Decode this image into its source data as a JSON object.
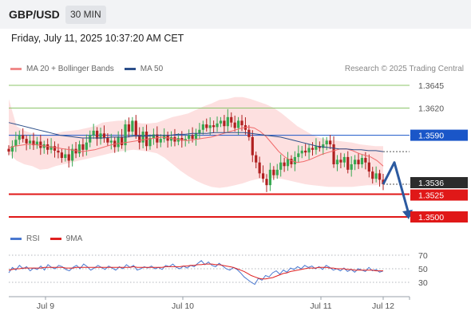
{
  "header": {
    "symbol": "GBP/USD",
    "timeframe": "30 MIN"
  },
  "datetime": "Friday, July 11, 2025 10:37:20 AM CET",
  "legend": {
    "items": [
      {
        "label": "MA 20 + Bollinger Bands",
        "color": "#f08a8a"
      },
      {
        "label": "MA 50",
        "color": "#2c4f8a"
      }
    ],
    "credit": "Research © 2025 Trading Central"
  },
  "rsi_legend": {
    "items": [
      {
        "label": "RSI",
        "color": "#4a78d0"
      },
      {
        "label": "9MA",
        "color": "#e02020"
      }
    ]
  },
  "chart_data": [
    {
      "type": "candlestick",
      "title": "",
      "x_ticks": [
        "Jul 9",
        "Jul 10",
        "Jul 11",
        "Jul 12"
      ],
      "price_levels": [
        {
          "label": "1.3645",
          "value": 1.3645,
          "kind": "resistance",
          "color": "#8cc46a"
        },
        {
          "label": "1.3620",
          "value": 1.362,
          "kind": "resistance",
          "color": "#8cc46a"
        },
        {
          "label": "1.3590",
          "value": 1.359,
          "kind": "pivot",
          "color": "#1a56c8"
        },
        {
          "label": "1.3536",
          "value": 1.3536,
          "kind": "last-price",
          "color": "#2b2b2b"
        },
        {
          "label": "1.3525",
          "value": 1.3525,
          "kind": "support",
          "color": "#e01818"
        },
        {
          "label": "1.3500",
          "value": 1.35,
          "kind": "support",
          "color": "#e01818"
        }
      ],
      "ylim": [
        1.3487,
        1.367
      ],
      "close_path": [
        1.3572,
        1.3578,
        1.3585,
        1.359,
        1.3586,
        1.3581,
        1.3584,
        1.3579,
        1.3583,
        1.3576,
        1.358,
        1.3574,
        1.3578,
        1.3573,
        1.3571,
        1.3565,
        1.3569,
        1.3562,
        1.3575,
        1.357,
        1.358,
        1.3574,
        1.3582,
        1.359,
        1.3595,
        1.3586,
        1.3592,
        1.3587,
        1.3582,
        1.3584,
        1.3577,
        1.3588,
        1.3579,
        1.3602,
        1.3594,
        1.3606,
        1.359,
        1.3582,
        1.3594,
        1.3578,
        1.3587,
        1.3591,
        1.3582,
        1.3586,
        1.359,
        1.3584,
        1.3588,
        1.3583,
        1.3587,
        1.3584,
        1.3586,
        1.359,
        1.3586,
        1.3592,
        1.3596,
        1.3602,
        1.3598,
        1.3601,
        1.3599,
        1.3603,
        1.3606,
        1.36,
        1.361,
        1.3604,
        1.3598,
        1.3606,
        1.3601,
        1.3596,
        1.3588,
        1.3568,
        1.356,
        1.3548,
        1.3542,
        1.3535,
        1.3552,
        1.3546,
        1.3552,
        1.356,
        1.3556,
        1.3564,
        1.3558,
        1.3566,
        1.357,
        1.3573,
        1.3571,
        1.3576,
        1.3574,
        1.3578,
        1.3576,
        1.358,
        1.3584,
        1.358,
        1.3558,
        1.3563,
        1.356,
        1.3566,
        1.3552,
        1.3558,
        1.3563,
        1.3558,
        1.3565,
        1.356,
        1.355,
        1.3542,
        1.3548,
        1.3541,
        1.3536
      ],
      "ma20_path": [
        1.3576,
        1.3578,
        1.3579,
        1.358,
        1.358,
        1.3579,
        1.3578,
        1.3577,
        1.3576,
        1.3575,
        1.3574,
        1.3573,
        1.3572,
        1.3573,
        1.3574,
        1.3576,
        1.3578,
        1.358,
        1.3581,
        1.3582,
        1.3583,
        1.3584,
        1.3585,
        1.3586,
        1.3587,
        1.3588,
        1.3587,
        1.3586,
        1.3585,
        1.3584,
        1.3585,
        1.3586,
        1.3587,
        1.3588,
        1.359,
        1.3592,
        1.3594,
        1.3596,
        1.3598,
        1.3599,
        1.3598,
        1.3594,
        1.3588,
        1.358,
        1.3572,
        1.3566,
        1.3562,
        1.356,
        1.3561,
        1.3563,
        1.3566,
        1.3569,
        1.3571,
        1.3573,
        1.3575,
        1.3575,
        1.3573,
        1.357,
        1.3568,
        1.3566,
        1.3562,
        1.3556
      ],
      "ma50_path": [
        1.3604,
        1.3602,
        1.36,
        1.3598,
        1.3596,
        1.3594,
        1.3592,
        1.359,
        1.3589,
        1.3588,
        1.3587,
        1.3587,
        1.3587,
        1.3587,
        1.3588,
        1.3588,
        1.3588,
        1.3589,
        1.3589,
        1.3589,
        1.359,
        1.359,
        1.359,
        1.3591,
        1.3591,
        1.3592,
        1.3592,
        1.3592,
        1.3593,
        1.3593,
        1.3593,
        1.3593,
        1.3593,
        1.3592,
        1.3591,
        1.359,
        1.3589,
        1.3588,
        1.3586,
        1.3584,
        1.3582,
        1.358,
        1.3578,
        1.3577,
        1.3576,
        1.3575,
        1.3575,
        1.3574,
        1.3574,
        1.3573,
        1.3573,
        1.3572
      ],
      "bollinger_upper": [
        1.363,
        1.36,
        1.3595,
        1.3592,
        1.359,
        1.359,
        1.3592,
        1.3594,
        1.3595,
        1.3596,
        1.3598,
        1.36,
        1.3604,
        1.3605,
        1.3606,
        1.3606,
        1.3605,
        1.3603,
        1.3603,
        1.3604,
        1.3607,
        1.361,
        1.3612,
        1.3614,
        1.3618,
        1.3622,
        1.3625,
        1.3629,
        1.363,
        1.3632,
        1.3632,
        1.363,
        1.3627,
        1.3624,
        1.362,
        1.3614,
        1.3607,
        1.36,
        1.3595,
        1.359,
        1.3587,
        1.3585,
        1.3584,
        1.3583,
        1.3582,
        1.358,
        1.3579,
        1.3578,
        1.3578
      ],
      "bollinger_lower": [
        1.357,
        1.3562,
        1.3558,
        1.3556,
        1.3552,
        1.3553,
        1.3556,
        1.3558,
        1.356,
        1.3562,
        1.3564,
        1.3566,
        1.3568,
        1.357,
        1.3572,
        1.3573,
        1.3574,
        1.3573,
        1.3572,
        1.357,
        1.3565,
        1.3558,
        1.3551,
        1.3545,
        1.354,
        1.3536,
        1.3533,
        1.3532,
        1.3533,
        1.3535,
        1.3537,
        1.354,
        1.3542,
        1.3543,
        1.3543,
        1.3542,
        1.354,
        1.3538,
        1.3536,
        1.3535,
        1.3534,
        1.3533,
        1.3533,
        1.3533,
        1.3533,
        1.3534,
        1.3535,
        1.3535,
        1.3536
      ],
      "forecast_path": [
        1.3536,
        1.356,
        1.35
      ],
      "forecast_color": "#2c5aa0",
      "colors": {
        "up": "#37a851",
        "down": "#b02020",
        "ma20": "#f06a6a",
        "band": "#fcd6d6",
        "ma50": "#2c4f8a"
      }
    },
    {
      "type": "line",
      "title": "",
      "levels": [
        70,
        50,
        30
      ],
      "ylim": [
        20,
        80
      ],
      "series": [
        {
          "name": "RSI",
          "color": "#4a78d0",
          "values": [
            44,
            52,
            48,
            55,
            50,
            53,
            47,
            51,
            49,
            54,
            48,
            56,
            52,
            50,
            55,
            53,
            49,
            47,
            52,
            55,
            50,
            57,
            53,
            48,
            51,
            55,
            52,
            49,
            54,
            51,
            48,
            53,
            50,
            56,
            52,
            55,
            48,
            50,
            53,
            51,
            54,
            50,
            52,
            49,
            55,
            53,
            57,
            52,
            50,
            54,
            51,
            55,
            53,
            58,
            62,
            56,
            60,
            55,
            53,
            58,
            54,
            50,
            48,
            52,
            49,
            44,
            38,
            34,
            30,
            27,
            36,
            33,
            40,
            38,
            44,
            47,
            42,
            48,
            45,
            51,
            49,
            53,
            50,
            55,
            52,
            54,
            50,
            53,
            49,
            55,
            52,
            48,
            50,
            47,
            51,
            46,
            49,
            45,
            50,
            48,
            46,
            52,
            47,
            49,
            45,
            47
          ]
        },
        {
          "name": "9MA",
          "color": "#e02020",
          "values": [
            48,
            49,
            50,
            50,
            51,
            51,
            51,
            51,
            51,
            51,
            52,
            52,
            52,
            52,
            52,
            52,
            51,
            51,
            51,
            52,
            52,
            52,
            52,
            52,
            52,
            52,
            52,
            52,
            52,
            52,
            52,
            52,
            52,
            52,
            52,
            53,
            52,
            52,
            52,
            52,
            52,
            52,
            52,
            52,
            53,
            53,
            53,
            53,
            53,
            54,
            54,
            55,
            55,
            56,
            56,
            57,
            57,
            57,
            56,
            56,
            55,
            54,
            53,
            52,
            50,
            48,
            46,
            43,
            40,
            38,
            36,
            35,
            35,
            36,
            37,
            39,
            41,
            43,
            44,
            46,
            47,
            48,
            49,
            50,
            51,
            51,
            51,
            52,
            52,
            52,
            51,
            51,
            50,
            50,
            50,
            49,
            49,
            48,
            48,
            48,
            48,
            48,
            48,
            47,
            47,
            47
          ]
        }
      ]
    }
  ]
}
